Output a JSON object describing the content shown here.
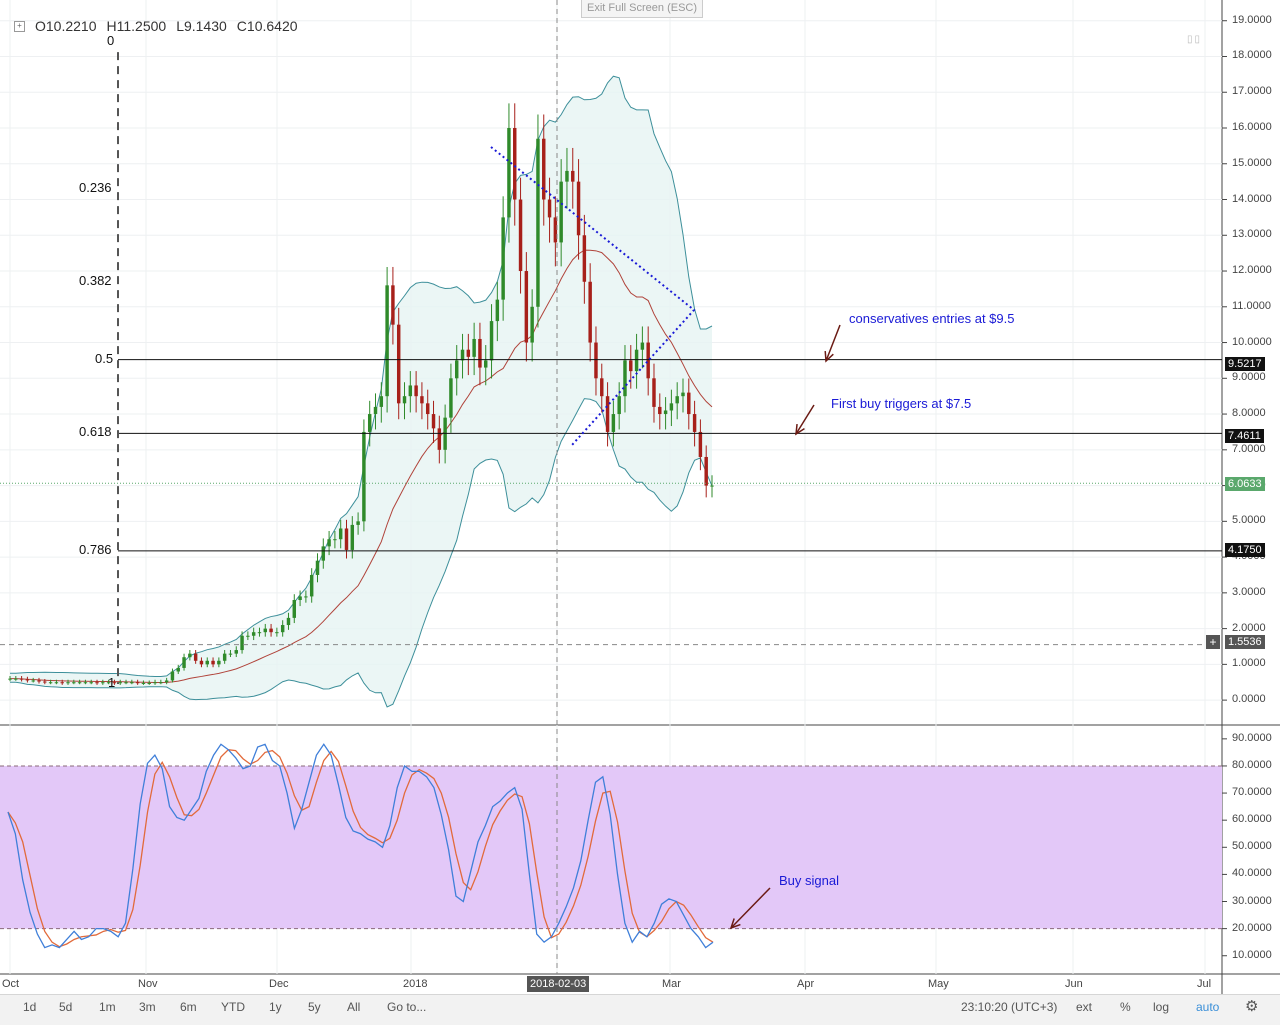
{
  "header": {
    "ohlc": {
      "o": "O10.2210",
      "h": "H11.2500",
      "l": "L9.1430",
      "c": "C10.6420"
    },
    "exit_fullscreen": "Exit Full Screen (ESC)"
  },
  "price_axis": [
    "19.0000",
    "18.0000",
    "17.0000",
    "16.0000",
    "15.0000",
    "14.0000",
    "13.0000",
    "12.0000",
    "11.0000",
    "10.0000",
    "9.0000",
    "8.0000",
    "7.0000",
    "6.0000",
    "5.0000",
    "4.0000",
    "3.0000",
    "2.0000",
    "1.0000",
    "0.0000"
  ],
  "osc_axis": [
    "90.0000",
    "80.0000",
    "70.0000",
    "60.0000",
    "50.0000",
    "40.0000",
    "30.0000",
    "20.0000",
    "10.0000"
  ],
  "price_tags": {
    "p1": "9.5217",
    "p2": "7.4611",
    "p3": "6.0633",
    "p4": "4.1750",
    "p5": "1.5536"
  },
  "fib_levels": [
    {
      "label": "0",
      "price": 18.4
    },
    {
      "label": "0.236",
      "price": 14.3
    },
    {
      "label": "0.382",
      "price": 11.7
    },
    {
      "label": "0.5",
      "price": 9.5217
    },
    {
      "label": "0.618",
      "price": 7.4611
    },
    {
      "label": "0.786",
      "price": 4.175
    },
    {
      "label": "1",
      "price": 0.45
    }
  ],
  "annotations": {
    "conservative": "conservatives entries at $9.5",
    "first_buy": "First buy triggers at $7.5",
    "buy_signal": "Buy signal"
  },
  "date_axis": [
    "Oct",
    "Nov",
    "Dec",
    "2018",
    "2018-02-03",
    "Mar",
    "Apr",
    "May",
    "Jun",
    "Jul"
  ],
  "toolbar": {
    "ranges": [
      "1d",
      "5d",
      "1m",
      "3m",
      "6m",
      "YTD",
      "1y",
      "5y",
      "All"
    ],
    "goto": "Go to...",
    "time": "23:10:20 (UTC+3)",
    "ext": "ext",
    "percent": "%",
    "log": "log",
    "auto": "auto"
  },
  "colors": {
    "bull": "#2f8a2a",
    "bear": "#a7201a",
    "band": "#3d8f9a",
    "osc_fill": "#e3c8f8",
    "blue_line": "#3f7fd9",
    "orange_line": "#e26a3b",
    "annotation": "#1a1ad6",
    "arrow": "#6b1b14"
  },
  "chart_data": {
    "type": "candlestick",
    "title": "",
    "y_range": [
      -0.5,
      19.3
    ],
    "bar_dates": "daily Oct 2017 - Mar 2018",
    "closes": [
      0.6,
      0.6,
      0.58,
      0.55,
      0.55,
      0.52,
      0.5,
      0.5,
      0.5,
      0.48,
      0.5,
      0.5,
      0.5,
      0.5,
      0.5,
      0.48,
      0.5,
      0.5,
      0.48,
      0.5,
      0.5,
      0.5,
      0.48,
      0.48,
      0.48,
      0.5,
      0.5,
      0.55,
      0.8,
      0.9,
      1.2,
      1.3,
      1.1,
      1.0,
      1.1,
      1.0,
      1.1,
      1.3,
      1.3,
      1.4,
      1.8,
      1.8,
      1.9,
      1.9,
      2.0,
      1.9,
      1.9,
      2.1,
      2.3,
      2.8,
      2.9,
      2.9,
      3.5,
      3.9,
      4.3,
      4.5,
      4.5,
      4.8,
      4.2,
      4.9,
      5.0,
      7.5,
      8.0,
      8.2,
      8.5,
      11.6,
      10.5,
      8.3,
      8.5,
      8.8,
      8.5,
      8.3,
      8.0,
      7.6,
      7.0,
      7.9,
      9.0,
      9.5,
      9.8,
      9.6,
      10.1,
      9.3,
      9.5,
      10.6,
      11.2,
      13.5,
      16.0,
      14.0,
      12.0,
      10.0,
      11.0,
      15.7,
      14.0,
      13.5,
      12.8,
      14.5,
      14.8,
      14.5,
      13.0,
      11.7,
      10.0,
      9.0,
      8.5,
      7.5,
      8.0,
      8.5,
      9.5,
      9.2,
      9.8,
      10.0,
      9.0,
      8.2,
      8.0,
      8.1,
      8.3,
      8.5,
      8.6,
      8.0,
      7.5,
      6.8,
      6.0,
      6.0
    ]
  },
  "stochastic": {
    "overbought": 80,
    "oversold": 20,
    "k": [
      63,
      55,
      38,
      26,
      18,
      13,
      14,
      13,
      16,
      19,
      16,
      17,
      20,
      20,
      19,
      17,
      22,
      42,
      66,
      81,
      84,
      79,
      65,
      61,
      60,
      64,
      68,
      78,
      84,
      88,
      86,
      83,
      79,
      80,
      87,
      88,
      82,
      80,
      70,
      57,
      64,
      74,
      84,
      88,
      84,
      73,
      61,
      56,
      55,
      53,
      52,
      50,
      58,
      72,
      80,
      78,
      78,
      76,
      72,
      62,
      49,
      32,
      30,
      41,
      52,
      58,
      65,
      67,
      70,
      72,
      64,
      40,
      18,
      15,
      17,
      22,
      28,
      35,
      45,
      60,
      74,
      76,
      62,
      40,
      22,
      15,
      19,
      17,
      22,
      29,
      31,
      30,
      25,
      20,
      17,
      13,
      15
    ]
  }
}
